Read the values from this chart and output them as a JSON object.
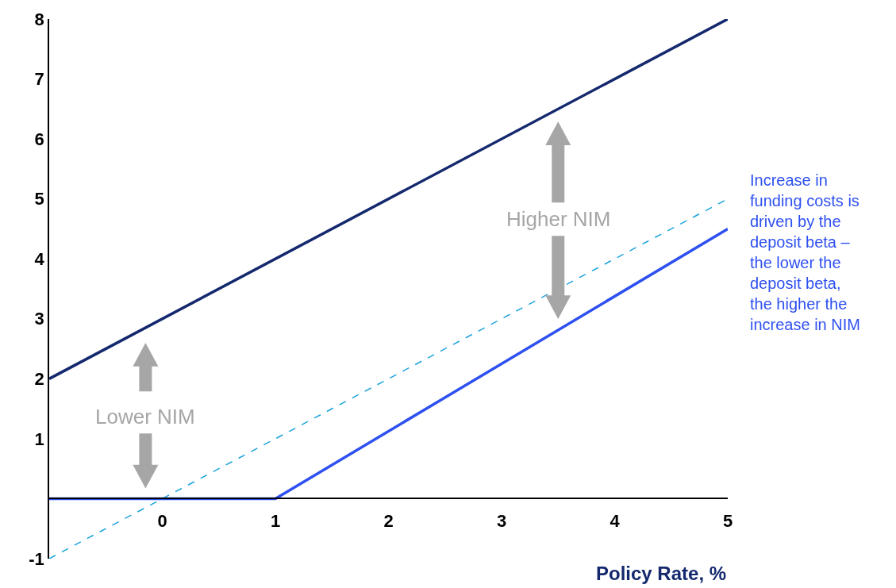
{
  "chart_data": {
    "type": "line",
    "xlabel": "Policy Rate, %",
    "x": [
      -1,
      5
    ],
    "series": [
      {
        "color": "#14286e",
        "values": [
          2,
          8
        ]
      },
      {
        "color": "#1aa3dc",
        "values": [
          -1,
          5
        ],
        "line_style": "dashed"
      },
      {
        "color": "#2e50f0",
        "x": [
          -1,
          1,
          5
        ],
        "values": [
          0,
          0,
          4.5
        ]
      }
    ],
    "xlim": [
      -1,
      5
    ],
    "xticks": [
      0,
      1,
      2,
      3,
      4,
      5
    ],
    "ylim": [
      -1,
      8
    ],
    "yticks": [
      -1,
      1,
      2,
      3,
      4,
      5,
      6,
      7,
      8
    ],
    "annotations": [
      "Lower NIM",
      "Higher NIM",
      "Increase in funding costs is driven by the deposit beta – the lower the deposit beta, the higher the increase in NIM"
    ],
    "marker": "none",
    "line_style": "solid"
  }
}
